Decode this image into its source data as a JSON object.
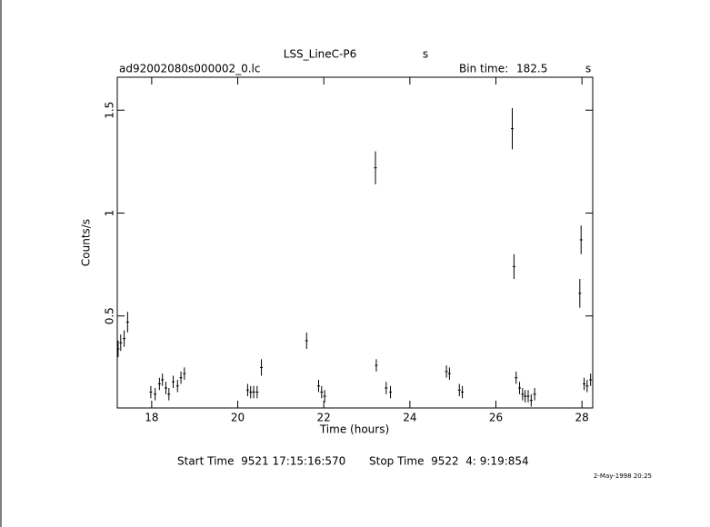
{
  "chart_data": {
    "type": "errorbar",
    "title": "LSS_LineC-P6",
    "title_unit": "s",
    "file_name": "ad92002080s000002_0.lc",
    "bin_time_label": "Bin time:",
    "bin_time": "182.5",
    "bin_time_unit": "s",
    "x_label": "Time (hours)",
    "y_label": "Counts/s",
    "start_time": "Start Time  9521 17:15:16:570",
    "stop_time": "Stop Time  9522  4: 9:19:854",
    "date_stamp": "2-May-1998 20:25",
    "xlim": [
      17.2,
      28.25
    ],
    "ylim": [
      0.053,
      1.66
    ],
    "xticks": [
      18,
      20,
      22,
      24,
      26,
      28
    ],
    "yticks": [
      0.5,
      1,
      1.5
    ],
    "color": "#000000",
    "series": [
      {
        "x": [
          17.22,
          17.28,
          17.36,
          17.44,
          17.98,
          18.08,
          18.18,
          18.25,
          18.33,
          18.4,
          18.5,
          18.6,
          18.68,
          18.76,
          20.23,
          20.3,
          20.37,
          20.45,
          20.55,
          21.6,
          21.88,
          21.95,
          22.02,
          23.2,
          23.22,
          23.45,
          23.55,
          24.85,
          24.92,
          25.15,
          25.22,
          26.38,
          26.42,
          26.47,
          26.55,
          26.62,
          26.68,
          26.75,
          26.82,
          26.9,
          27.95,
          27.98,
          28.05,
          28.12,
          28.2
        ],
        "values": [
          0.34,
          0.37,
          0.39,
          0.47,
          0.13,
          0.12,
          0.17,
          0.19,
          0.15,
          0.12,
          0.18,
          0.16,
          0.2,
          0.22,
          0.14,
          0.13,
          0.13,
          0.13,
          0.25,
          0.38,
          0.16,
          0.13,
          0.11,
          1.22,
          0.26,
          0.15,
          0.13,
          0.23,
          0.22,
          0.14,
          0.13,
          1.41,
          0.74,
          0.2,
          0.15,
          0.12,
          0.11,
          0.11,
          0.09,
          0.12,
          0.61,
          0.87,
          0.17,
          0.16,
          0.19
        ],
        "errors": [
          0.04,
          0.04,
          0.04,
          0.05,
          0.03,
          0.03,
          0.03,
          0.03,
          0.03,
          0.03,
          0.03,
          0.03,
          0.03,
          0.03,
          0.03,
          0.03,
          0.03,
          0.03,
          0.04,
          0.04,
          0.03,
          0.03,
          0.03,
          0.08,
          0.03,
          0.03,
          0.03,
          0.03,
          0.03,
          0.03,
          0.03,
          0.1,
          0.06,
          0.03,
          0.03,
          0.03,
          0.03,
          0.03,
          0.03,
          0.03,
          0.07,
          0.07,
          0.03,
          0.03,
          0.03
        ]
      }
    ]
  }
}
